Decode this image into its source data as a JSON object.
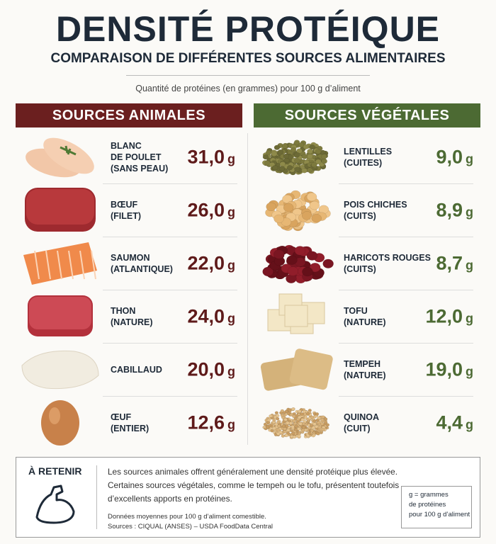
{
  "header": {
    "title": "DENSITÉ PROTÉIQUE",
    "subtitle": "COMPARAISON DE DIFFÉRENTES SOURCES ALIMENTAIRES",
    "caption": "Quantité de protéines (en grammes) pour 100 g d’aliment"
  },
  "sections": [
    {
      "title": "SOURCES ANIMALES",
      "items": [
        {
          "name": [
            "BLANC",
            "DE POULET",
            "(SANS PEAU)"
          ],
          "value": "31,0",
          "unit": "g"
        },
        {
          "name": [
            "BŒUF",
            "(FILET)"
          ],
          "value": "26,0",
          "unit": "g"
        },
        {
          "name": [
            "SAUMON",
            "(ATLANTIQUE)"
          ],
          "value": "22,0",
          "unit": "g"
        },
        {
          "name": [
            "THON",
            "(NATURE)"
          ],
          "value": "24,0",
          "unit": "g"
        },
        {
          "name": [
            "CABILLAUD"
          ],
          "value": "20,0",
          "unit": "g"
        },
        {
          "name": [
            "ŒUF",
            "(ENTIER)"
          ],
          "value": "12,6",
          "unit": "g"
        }
      ]
    },
    {
      "title": "SOURCES VÉGÉTALES",
      "items": [
        {
          "name": [
            "LENTILLES",
            "(CUITES)"
          ],
          "value": "9,0",
          "unit": "g"
        },
        {
          "name": [
            "POIS CHICHES",
            "(CUITS)"
          ],
          "value": "8,9",
          "unit": "g"
        },
        {
          "name": [
            "HARICOTS ROUGES",
            "(CUITS)"
          ],
          "value": "8,7",
          "unit": "g"
        },
        {
          "name": [
            "TOFU",
            "(NATURE)"
          ],
          "value": "12,0",
          "unit": "g"
        },
        {
          "name": [
            "TEMPEH",
            "(NATURE)"
          ],
          "value": "19,0",
          "unit": "g"
        },
        {
          "name": [
            "QUINOA",
            "(CUIT)"
          ],
          "value": "4,4",
          "unit": "g"
        }
      ]
    }
  ],
  "footer": {
    "title": "À RETENIR",
    "text": [
      "Les sources animales offrent généralement une densité protéique plus élevée.",
      "Certaines sources végétales, comme le tempeh ou le tofu, présentent toutefois",
      "d’excellents apports en protéines."
    ],
    "notes": [
      "Données moyennes pour 100 g d’aliment comestible.",
      "Sources : CIQUAL (ANSES) – USDA FoodData Central"
    ],
    "legend": [
      "g = grammes",
      "de protéines",
      "pour 100 g d’aliment"
    ]
  }
}
